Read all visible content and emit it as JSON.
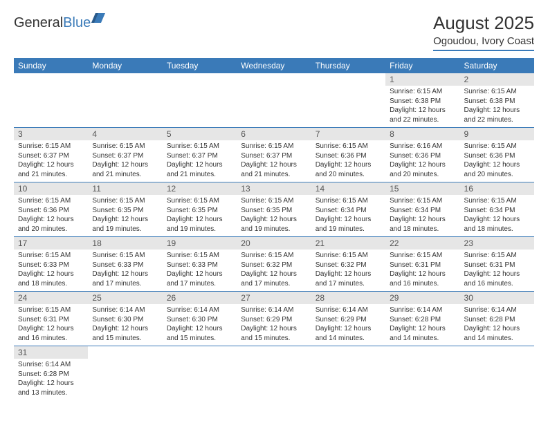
{
  "logo": {
    "general": "General",
    "blue": "Blue"
  },
  "title": "August 2025",
  "location": "Ogoudou, Ivory Coast",
  "colors": {
    "brand": "#3a7ab8",
    "header_bg": "#3a7ab8",
    "daynum_bg": "#e6e6e6"
  },
  "weekdays": [
    "Sunday",
    "Monday",
    "Tuesday",
    "Wednesday",
    "Thursday",
    "Friday",
    "Saturday"
  ],
  "layout": {
    "first_weekday_index": 5,
    "days_in_month": 31
  },
  "days": [
    {
      "n": 1,
      "sunrise": "6:15 AM",
      "sunset": "6:38 PM",
      "daylight": "12 hours and 22 minutes."
    },
    {
      "n": 2,
      "sunrise": "6:15 AM",
      "sunset": "6:38 PM",
      "daylight": "12 hours and 22 minutes."
    },
    {
      "n": 3,
      "sunrise": "6:15 AM",
      "sunset": "6:37 PM",
      "daylight": "12 hours and 21 minutes."
    },
    {
      "n": 4,
      "sunrise": "6:15 AM",
      "sunset": "6:37 PM",
      "daylight": "12 hours and 21 minutes."
    },
    {
      "n": 5,
      "sunrise": "6:15 AM",
      "sunset": "6:37 PM",
      "daylight": "12 hours and 21 minutes."
    },
    {
      "n": 6,
      "sunrise": "6:15 AM",
      "sunset": "6:37 PM",
      "daylight": "12 hours and 21 minutes."
    },
    {
      "n": 7,
      "sunrise": "6:15 AM",
      "sunset": "6:36 PM",
      "daylight": "12 hours and 20 minutes."
    },
    {
      "n": 8,
      "sunrise": "6:16 AM",
      "sunset": "6:36 PM",
      "daylight": "12 hours and 20 minutes."
    },
    {
      "n": 9,
      "sunrise": "6:15 AM",
      "sunset": "6:36 PM",
      "daylight": "12 hours and 20 minutes."
    },
    {
      "n": 10,
      "sunrise": "6:15 AM",
      "sunset": "6:36 PM",
      "daylight": "12 hours and 20 minutes."
    },
    {
      "n": 11,
      "sunrise": "6:15 AM",
      "sunset": "6:35 PM",
      "daylight": "12 hours and 19 minutes."
    },
    {
      "n": 12,
      "sunrise": "6:15 AM",
      "sunset": "6:35 PM",
      "daylight": "12 hours and 19 minutes."
    },
    {
      "n": 13,
      "sunrise": "6:15 AM",
      "sunset": "6:35 PM",
      "daylight": "12 hours and 19 minutes."
    },
    {
      "n": 14,
      "sunrise": "6:15 AM",
      "sunset": "6:34 PM",
      "daylight": "12 hours and 19 minutes."
    },
    {
      "n": 15,
      "sunrise": "6:15 AM",
      "sunset": "6:34 PM",
      "daylight": "12 hours and 18 minutes."
    },
    {
      "n": 16,
      "sunrise": "6:15 AM",
      "sunset": "6:34 PM",
      "daylight": "12 hours and 18 minutes."
    },
    {
      "n": 17,
      "sunrise": "6:15 AM",
      "sunset": "6:33 PM",
      "daylight": "12 hours and 18 minutes."
    },
    {
      "n": 18,
      "sunrise": "6:15 AM",
      "sunset": "6:33 PM",
      "daylight": "12 hours and 17 minutes."
    },
    {
      "n": 19,
      "sunrise": "6:15 AM",
      "sunset": "6:33 PM",
      "daylight": "12 hours and 17 minutes."
    },
    {
      "n": 20,
      "sunrise": "6:15 AM",
      "sunset": "6:32 PM",
      "daylight": "12 hours and 17 minutes."
    },
    {
      "n": 21,
      "sunrise": "6:15 AM",
      "sunset": "6:32 PM",
      "daylight": "12 hours and 17 minutes."
    },
    {
      "n": 22,
      "sunrise": "6:15 AM",
      "sunset": "6:31 PM",
      "daylight": "12 hours and 16 minutes."
    },
    {
      "n": 23,
      "sunrise": "6:15 AM",
      "sunset": "6:31 PM",
      "daylight": "12 hours and 16 minutes."
    },
    {
      "n": 24,
      "sunrise": "6:15 AM",
      "sunset": "6:31 PM",
      "daylight": "12 hours and 16 minutes."
    },
    {
      "n": 25,
      "sunrise": "6:14 AM",
      "sunset": "6:30 PM",
      "daylight": "12 hours and 15 minutes."
    },
    {
      "n": 26,
      "sunrise": "6:14 AM",
      "sunset": "6:30 PM",
      "daylight": "12 hours and 15 minutes."
    },
    {
      "n": 27,
      "sunrise": "6:14 AM",
      "sunset": "6:29 PM",
      "daylight": "12 hours and 15 minutes."
    },
    {
      "n": 28,
      "sunrise": "6:14 AM",
      "sunset": "6:29 PM",
      "daylight": "12 hours and 14 minutes."
    },
    {
      "n": 29,
      "sunrise": "6:14 AM",
      "sunset": "6:28 PM",
      "daylight": "12 hours and 14 minutes."
    },
    {
      "n": 30,
      "sunrise": "6:14 AM",
      "sunset": "6:28 PM",
      "daylight": "12 hours and 14 minutes."
    },
    {
      "n": 31,
      "sunrise": "6:14 AM",
      "sunset": "6:28 PM",
      "daylight": "12 hours and 13 minutes."
    }
  ],
  "labels": {
    "sunrise": "Sunrise:",
    "sunset": "Sunset:",
    "daylight": "Daylight:"
  }
}
